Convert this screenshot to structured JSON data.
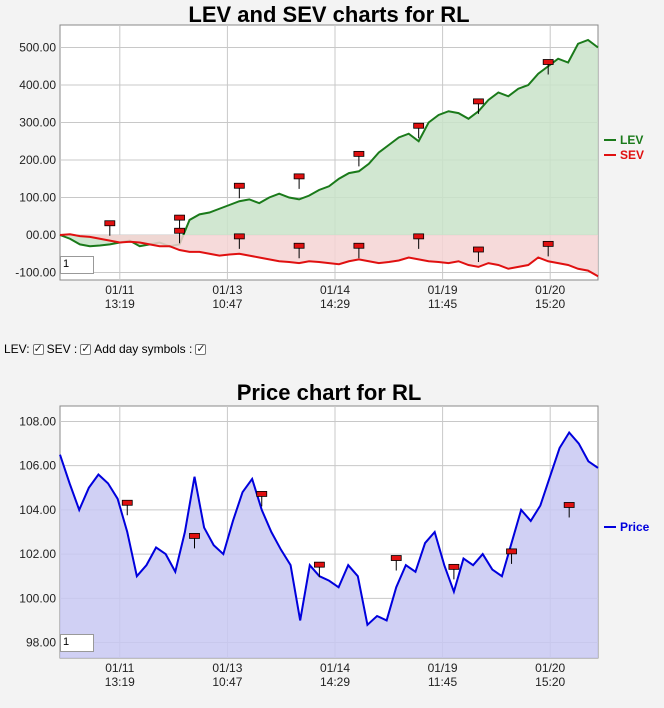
{
  "controls": {
    "lev_label": "LEV:",
    "sev_label": "SEV :",
    "day_label": "Add day symbols :"
  },
  "chart_data": [
    {
      "type": "area",
      "title": "LEV and SEV charts for RL",
      "ylim": [
        -120,
        560
      ],
      "yticks": [
        -100,
        0,
        100,
        200,
        300,
        400,
        500
      ],
      "ytick_labels": [
        "-100.00",
        "00.00",
        "100.00",
        "200.00",
        "300.00",
        "400.00",
        "500.00"
      ],
      "xtick_labels": [
        [
          "01/11",
          "13:19"
        ],
        [
          "01/13",
          "10:47"
        ],
        [
          "01/14",
          "14:29"
        ],
        [
          "01/19",
          "11:45"
        ],
        [
          "01/20",
          "15:20"
        ]
      ],
      "grid": true,
      "legend": "right",
      "zoom_value": "1",
      "series": [
        {
          "name": "LEV",
          "color": "#1a7a1a",
          "fill": "#c9e3c9",
          "values": [
            0,
            -10,
            -25,
            -30,
            -28,
            -25,
            -20,
            -15,
            -30,
            -25,
            -20,
            -30,
            -25,
            40,
            55,
            60,
            70,
            80,
            90,
            95,
            85,
            100,
            110,
            100,
            95,
            105,
            120,
            130,
            150,
            165,
            170,
            190,
            220,
            240,
            260,
            270,
            250,
            300,
            320,
            330,
            325,
            310,
            330,
            360,
            380,
            370,
            390,
            400,
            430,
            450,
            470,
            460,
            510,
            520,
            500
          ]
        },
        {
          "name": "SEV",
          "color": "#e01010",
          "fill": "#f4d4d4",
          "values": [
            0,
            2,
            -3,
            -5,
            -10,
            -15,
            -20,
            -18,
            -20,
            -25,
            -30,
            -30,
            -40,
            -45,
            -45,
            -50,
            -55,
            -52,
            -50,
            -55,
            -60,
            -65,
            -70,
            -72,
            -75,
            -70,
            -72,
            -75,
            -78,
            -70,
            -65,
            -70,
            -75,
            -72,
            -68,
            -60,
            -65,
            -70,
            -72,
            -75,
            -70,
            -80,
            -85,
            -75,
            -80,
            -90,
            -85,
            -80,
            -60,
            -70,
            -75,
            -80,
            -90,
            -95,
            -110
          ]
        }
      ],
      "markers_lev": [
        {
          "i": 5,
          "v": 30
        },
        {
          "i": 12,
          "v": 45
        },
        {
          "i": 18,
          "v": 130
        },
        {
          "i": 24,
          "v": 155
        },
        {
          "i": 30,
          "v": 215
        },
        {
          "i": 36,
          "v": 290
        },
        {
          "i": 42,
          "v": 355
        },
        {
          "i": 49,
          "v": 460
        },
        {
          "i": 12,
          "v": 10
        }
      ],
      "markers_sev": [
        {
          "i": 18,
          "v": -5
        },
        {
          "i": 24,
          "v": -30
        },
        {
          "i": 30,
          "v": -30
        },
        {
          "i": 36,
          "v": -5
        },
        {
          "i": 42,
          "v": -40
        },
        {
          "i": 49,
          "v": -25
        }
      ]
    },
    {
      "type": "area",
      "title": "Price chart for RL",
      "ylim": [
        97.3,
        108.7
      ],
      "yticks": [
        98,
        100,
        102,
        104,
        106,
        108
      ],
      "ytick_labels": [
        "98.00",
        "100.00",
        "102.00",
        "104.00",
        "106.00",
        "108.00"
      ],
      "xtick_labels": [
        [
          "01/11",
          "13:19"
        ],
        [
          "01/13",
          "10:47"
        ],
        [
          "01/14",
          "14:29"
        ],
        [
          "01/19",
          "11:45"
        ],
        [
          "01/20",
          "15:20"
        ]
      ],
      "grid": true,
      "legend": "right",
      "zoom_value": "1",
      "series": [
        {
          "name": "Price",
          "color": "#0000dd",
          "fill": "#c8c8f2",
          "values": [
            106.5,
            105.2,
            104.0,
            105.0,
            105.6,
            105.2,
            104.5,
            103.0,
            101.0,
            101.5,
            102.3,
            102.0,
            101.2,
            103.0,
            105.5,
            103.2,
            102.4,
            102.0,
            103.5,
            104.8,
            105.4,
            104.0,
            103.0,
            102.2,
            101.5,
            99.0,
            101.5,
            101.0,
            100.8,
            100.5,
            101.5,
            101.0,
            98.8,
            99.2,
            99.0,
            100.5,
            101.5,
            101.2,
            102.5,
            103.0,
            101.5,
            100.3,
            101.8,
            101.5,
            102.0,
            101.3,
            101.0,
            102.5,
            104.0,
            103.5,
            104.2,
            105.5,
            106.8,
            107.5,
            107.0,
            106.2,
            105.9
          ]
        }
      ],
      "markers": [
        {
          "i": 7,
          "v": 104.3
        },
        {
          "i": 14,
          "v": 102.8
        },
        {
          "i": 21,
          "v": 104.7
        },
        {
          "i": 27,
          "v": 101.5
        },
        {
          "i": 35,
          "v": 101.8
        },
        {
          "i": 41,
          "v": 101.4
        },
        {
          "i": 47,
          "v": 102.1
        },
        {
          "i": 53,
          "v": 104.2
        }
      ]
    }
  ]
}
